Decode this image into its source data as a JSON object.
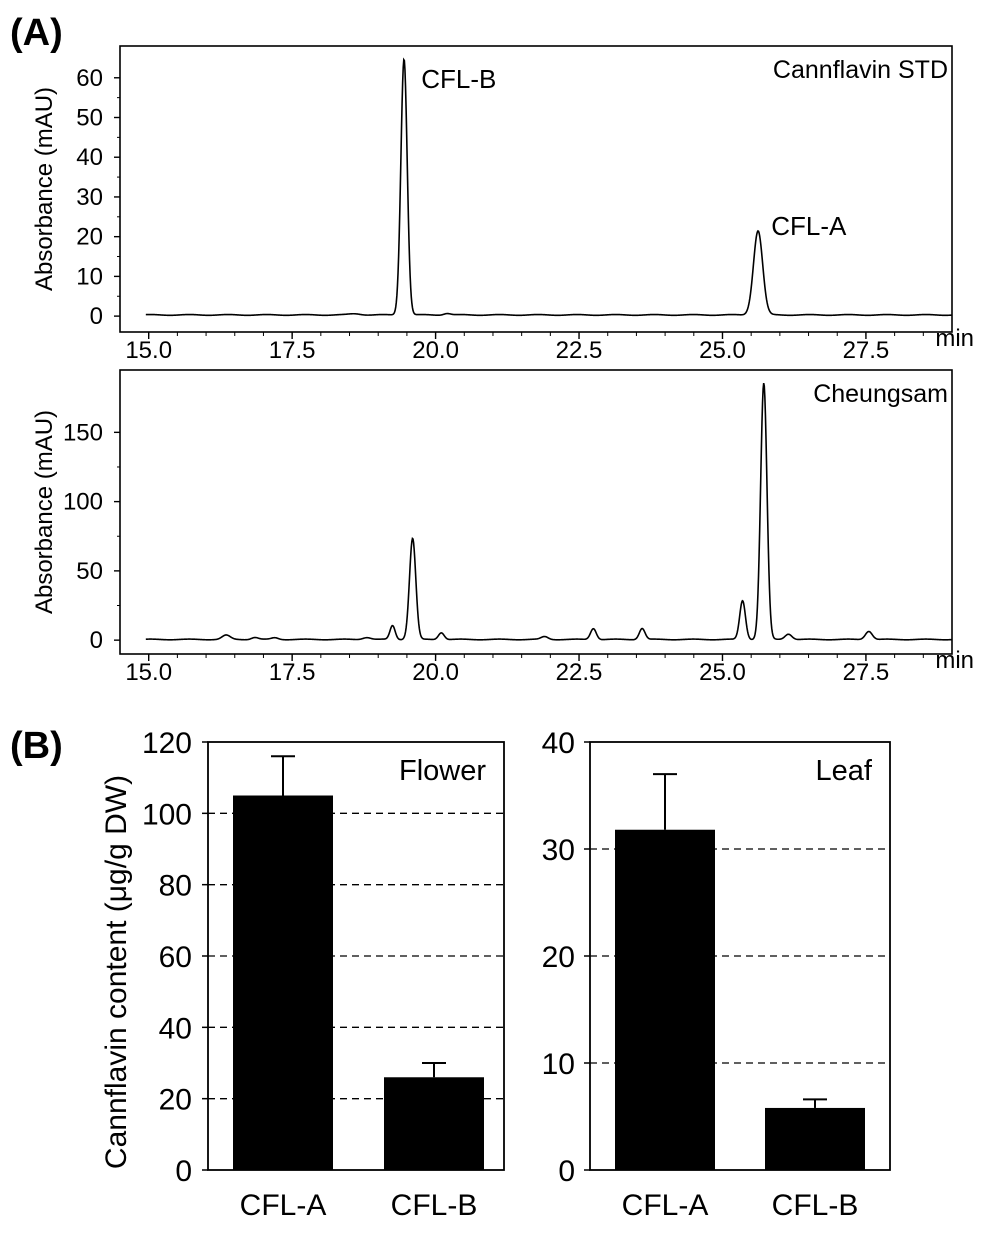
{
  "panel_labels": {
    "a": "(A)",
    "b": "(B)"
  },
  "chart_data": [
    {
      "type": "line",
      "title": "Cannflavin STD",
      "xlabel": "min",
      "ylabel": "Absorbance (mAU)",
      "xlim": [
        14.5,
        29.0
      ],
      "ylim": [
        -4,
        68
      ],
      "xticks": [
        "15.0",
        "17.5",
        "20.0",
        "22.5",
        "25.0",
        "27.5"
      ],
      "yticks": [
        "0",
        "10",
        "20",
        "30",
        "40",
        "50",
        "60"
      ],
      "baseline": 0.3,
      "peaks": [
        {
          "rt": 19.45,
          "height": 64.5,
          "width": 0.055
        },
        {
          "rt": 25.62,
          "height": 21.2,
          "width": 0.08
        },
        {
          "rt": 18.6,
          "height": 0.3,
          "width": 0.1
        },
        {
          "rt": 20.2,
          "height": 0.4,
          "width": 0.06
        }
      ],
      "annotations": [
        {
          "text": "CFL-B",
          "x": 19.75,
          "y": 60
        },
        {
          "text": "CFL-A",
          "x": 25.85,
          "y": 23
        }
      ]
    },
    {
      "type": "line",
      "title": "Cheungsam",
      "xlabel": "min",
      "ylabel": "Absorbance (mAU)",
      "xlim": [
        14.5,
        29.0
      ],
      "ylim": [
        -10,
        195
      ],
      "xticks": [
        "15.0",
        "17.5",
        "20.0",
        "22.5",
        "25.0",
        "27.5"
      ],
      "yticks": [
        "0",
        "50",
        "100",
        "150"
      ],
      "baseline": 0.5,
      "peaks": [
        {
          "rt": 16.35,
          "height": 3,
          "width": 0.07
        },
        {
          "rt": 16.85,
          "height": 1.5,
          "width": 0.06
        },
        {
          "rt": 17.2,
          "height": 1.2,
          "width": 0.06
        },
        {
          "rt": 18.8,
          "height": 1.5,
          "width": 0.07
        },
        {
          "rt": 19.25,
          "height": 10,
          "width": 0.045
        },
        {
          "rt": 19.6,
          "height": 73,
          "width": 0.055
        },
        {
          "rt": 20.1,
          "height": 5,
          "width": 0.05
        },
        {
          "rt": 21.9,
          "height": 2,
          "width": 0.06
        },
        {
          "rt": 22.75,
          "height": 8,
          "width": 0.05
        },
        {
          "rt": 23.6,
          "height": 8,
          "width": 0.05
        },
        {
          "rt": 25.35,
          "height": 28,
          "width": 0.05
        },
        {
          "rt": 25.72,
          "height": 185,
          "width": 0.055
        },
        {
          "rt": 26.15,
          "height": 4,
          "width": 0.06
        },
        {
          "rt": 27.55,
          "height": 6,
          "width": 0.06
        }
      ],
      "annotations": []
    },
    {
      "type": "bar",
      "title": "Flower",
      "xlabel": "",
      "ylabel": "Cannflavin content (μg/g DW)",
      "categories": [
        "CFL-A",
        "CFL-B"
      ],
      "values": [
        105,
        26
      ],
      "errors": [
        11,
        4
      ],
      "ylim": [
        0,
        120
      ],
      "yticks": [
        "0",
        "20",
        "40",
        "60",
        "80",
        "100",
        "120"
      ],
      "gridlines": [
        20,
        40,
        60,
        80,
        100
      ]
    },
    {
      "type": "bar",
      "title": "Leaf",
      "xlabel": "",
      "ylabel": "",
      "categories": [
        "CFL-A",
        "CFL-B"
      ],
      "values": [
        31.8,
        5.8
      ],
      "errors": [
        5.2,
        0.8
      ],
      "ylim": [
        0,
        40
      ],
      "yticks": [
        "0",
        "10",
        "20",
        "30",
        "40"
      ],
      "gridlines": [
        10,
        20,
        30
      ]
    }
  ]
}
